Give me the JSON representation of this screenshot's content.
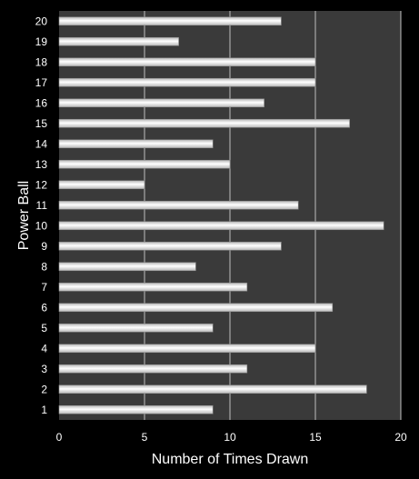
{
  "chart_data": {
    "type": "bar",
    "orientation": "horizontal",
    "categories": [
      "1",
      "2",
      "3",
      "4",
      "5",
      "6",
      "7",
      "8",
      "9",
      "10",
      "11",
      "12",
      "13",
      "14",
      "15",
      "16",
      "17",
      "18",
      "19",
      "20"
    ],
    "values": [
      9,
      18,
      11,
      15,
      9,
      16,
      11,
      8,
      13,
      19,
      14,
      5,
      10,
      9,
      17,
      12,
      15,
      15,
      7,
      13
    ],
    "xlabel": "Number of Times Drawn",
    "ylabel": "Power Ball",
    "xlim": [
      0,
      20
    ],
    "xticks": [
      "0",
      "5",
      "10",
      "15",
      "20"
    ],
    "grid": "vertical gridlines",
    "legend": "none",
    "colors": {
      "background": "#000000",
      "plot_area": "#3a3a3a",
      "gridline": "#bdbdbd",
      "bar_light": "#ffffff",
      "bar_dark": "#b8b8b8",
      "text": "#ffffff"
    }
  }
}
